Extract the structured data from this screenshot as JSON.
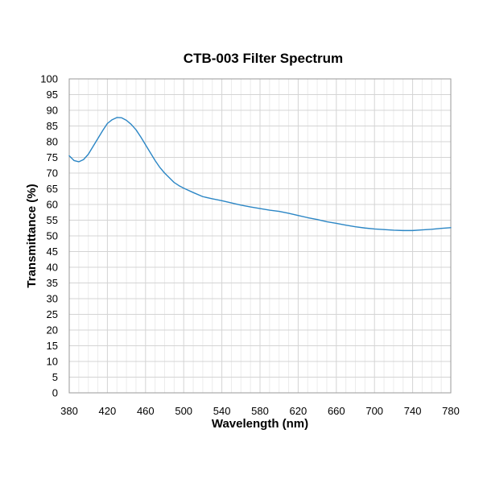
{
  "chart_data": {
    "type": "line",
    "title": "CTB-003 Filter Spectrum",
    "xlabel": "Wavelength (nm)",
    "ylabel": "Transmittance (%)",
    "xlim": [
      380,
      780
    ],
    "ylim": [
      0,
      100
    ],
    "x_ticks": [
      380,
      420,
      460,
      500,
      540,
      580,
      620,
      660,
      700,
      740,
      780
    ],
    "y_ticks": [
      0,
      5,
      10,
      15,
      20,
      25,
      30,
      35,
      40,
      45,
      50,
      55,
      60,
      65,
      70,
      75,
      80,
      85,
      90,
      95,
      100
    ],
    "grid": true,
    "legend": "none",
    "colors": {
      "series": "#2b86c5"
    },
    "series": [
      {
        "x": [
          380,
          385,
          390,
          395,
          400,
          405,
          410,
          415,
          420,
          425,
          430,
          435,
          440,
          445,
          450,
          455,
          460,
          465,
          470,
          475,
          480,
          485,
          490,
          495,
          500,
          510,
          520,
          530,
          540,
          550,
          560,
          570,
          580,
          590,
          600,
          610,
          620,
          630,
          640,
          650,
          660,
          670,
          680,
          690,
          700,
          710,
          720,
          730,
          740,
          750,
          760,
          770,
          780
        ],
        "y": [
          75.5,
          74.0,
          73.6,
          74.3,
          76.0,
          78.5,
          81.0,
          83.5,
          85.8,
          87.0,
          87.7,
          87.6,
          86.8,
          85.5,
          83.8,
          81.5,
          79.0,
          76.5,
          74.0,
          71.8,
          70.0,
          68.5,
          67.0,
          66.0,
          65.2,
          63.8,
          62.5,
          61.8,
          61.2,
          60.5,
          59.8,
          59.2,
          58.7,
          58.2,
          57.8,
          57.2,
          56.5,
          55.8,
          55.2,
          54.5,
          54.0,
          53.4,
          52.9,
          52.5,
          52.2,
          52.0,
          51.8,
          51.7,
          51.7,
          51.9,
          52.1,
          52.4,
          52.6
        ]
      }
    ]
  }
}
